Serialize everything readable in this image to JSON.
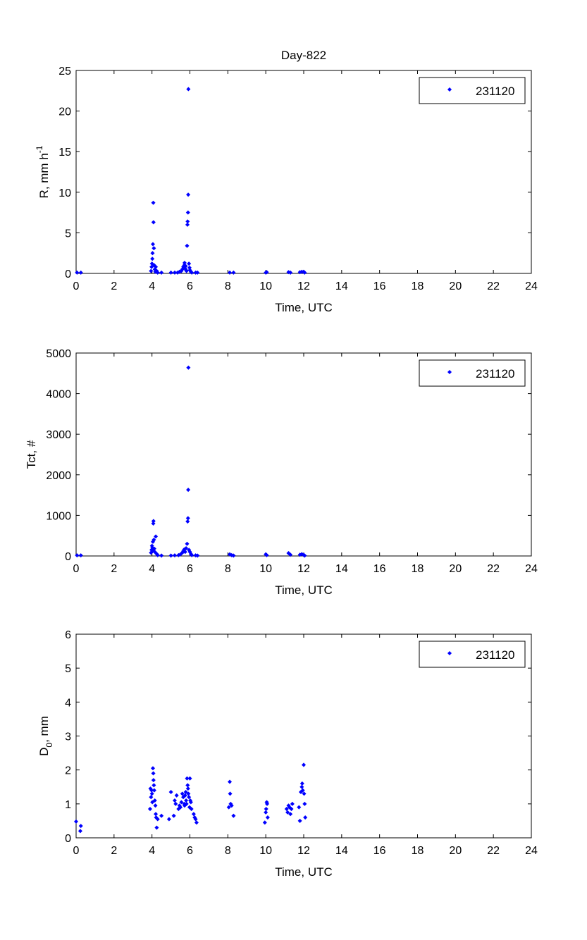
{
  "figure_title": "Day-822",
  "chart_data": [
    {
      "type": "scatter",
      "title": "Day-822",
      "xlabel": "Time, UTC",
      "ylabel": "R, mm h",
      "ylabel_sup": "-1",
      "xlim": [
        0,
        24
      ],
      "ylim": [
        0,
        25
      ],
      "xticks": [
        "0",
        "2",
        "4",
        "6",
        "8",
        "10",
        "12",
        "14",
        "16",
        "18",
        "20",
        "22",
        "24"
      ],
      "yticks": [
        "0",
        "5",
        "10",
        "15",
        "20",
        "25"
      ],
      "grid": false,
      "legend_position": "top-right",
      "series": [
        {
          "name": "231120",
          "color": "#0000ff",
          "marker": "diamond",
          "points": [
            [
              0.05,
              0.1
            ],
            [
              0.25,
              0.1
            ],
            [
              3.95,
              0.3
            ],
            [
              3.98,
              0.8
            ],
            [
              4.0,
              1.2
            ],
            [
              4.02,
              1.8
            ],
            [
              4.03,
              2.5
            ],
            [
              4.05,
              3.6
            ],
            [
              4.07,
              8.7
            ],
            [
              4.08,
              6.3
            ],
            [
              4.1,
              3.1
            ],
            [
              4.12,
              1.0
            ],
            [
              4.15,
              0.5
            ],
            [
              4.18,
              0.2
            ],
            [
              4.2,
              0.8
            ],
            [
              4.25,
              0.3
            ],
            [
              4.3,
              0.1
            ],
            [
              4.5,
              0.1
            ],
            [
              5.0,
              0.1
            ],
            [
              5.2,
              0.1
            ],
            [
              5.35,
              0.1
            ],
            [
              5.45,
              0.2
            ],
            [
              5.55,
              0.3
            ],
            [
              5.6,
              0.5
            ],
            [
              5.65,
              0.8
            ],
            [
              5.7,
              1.0
            ],
            [
              5.72,
              1.3
            ],
            [
              5.75,
              0.6
            ],
            [
              5.78,
              0.9
            ],
            [
              5.8,
              0.4
            ],
            [
              5.82,
              0.3
            ],
            [
              5.85,
              3.4
            ],
            [
              5.87,
              6.0
            ],
            [
              5.88,
              6.4
            ],
            [
              5.9,
              7.5
            ],
            [
              5.91,
              9.7
            ],
            [
              5.92,
              22.7
            ],
            [
              5.95,
              1.2
            ],
            [
              5.98,
              0.7
            ],
            [
              6.0,
              0.4
            ],
            [
              6.05,
              0.2
            ],
            [
              6.1,
              0.1
            ],
            [
              6.3,
              0.1
            ],
            [
              6.4,
              0.1
            ],
            [
              8.1,
              0.1
            ],
            [
              8.3,
              0.1
            ],
            [
              10.0,
              0.1
            ],
            [
              10.05,
              0.15
            ],
            [
              11.2,
              0.15
            ],
            [
              11.3,
              0.1
            ],
            [
              11.8,
              0.15
            ],
            [
              11.9,
              0.2
            ],
            [
              12.0,
              0.2
            ],
            [
              12.05,
              0.1
            ]
          ]
        }
      ]
    },
    {
      "type": "scatter",
      "title": "",
      "xlabel": "Time, UTC",
      "ylabel": "Tct, #",
      "xlim": [
        0,
        24
      ],
      "ylim": [
        0,
        5000
      ],
      "xticks": [
        "0",
        "2",
        "4",
        "6",
        "8",
        "10",
        "12",
        "14",
        "16",
        "18",
        "20",
        "22",
        "24"
      ],
      "yticks": [
        "0",
        "1000",
        "2000",
        "3000",
        "4000",
        "5000"
      ],
      "grid": false,
      "legend_position": "top-right",
      "series": [
        {
          "name": "231120",
          "color": "#0000ff",
          "marker": "diamond",
          "points": [
            [
              0.05,
              15
            ],
            [
              0.25,
              15
            ],
            [
              3.95,
              80
            ],
            [
              3.98,
              150
            ],
            [
              4.0,
              250
            ],
            [
              4.02,
              200
            ],
            [
              4.03,
              120
            ],
            [
              4.05,
              350
            ],
            [
              4.07,
              800
            ],
            [
              4.08,
              860
            ],
            [
              4.1,
              400
            ],
            [
              4.12,
              180
            ],
            [
              4.15,
              100
            ],
            [
              4.2,
              480
            ],
            [
              4.25,
              50
            ],
            [
              4.3,
              20
            ],
            [
              4.5,
              10
            ],
            [
              5.0,
              10
            ],
            [
              5.2,
              15
            ],
            [
              5.4,
              20
            ],
            [
              5.5,
              40
            ],
            [
              5.6,
              80
            ],
            [
              5.65,
              120
            ],
            [
              5.7,
              160
            ],
            [
              5.75,
              100
            ],
            [
              5.8,
              190
            ],
            [
              5.85,
              300
            ],
            [
              5.88,
              850
            ],
            [
              5.9,
              930
            ],
            [
              5.91,
              1630
            ],
            [
              5.92,
              4640
            ],
            [
              5.95,
              150
            ],
            [
              6.0,
              100
            ],
            [
              6.05,
              50
            ],
            [
              6.1,
              20
            ],
            [
              6.3,
              15
            ],
            [
              6.4,
              10
            ],
            [
              8.1,
              40
            ],
            [
              8.2,
              20
            ],
            [
              8.3,
              10
            ],
            [
              10.0,
              40
            ],
            [
              10.05,
              20
            ],
            [
              11.2,
              70
            ],
            [
              11.3,
              30
            ],
            [
              11.8,
              30
            ],
            [
              11.9,
              45
            ],
            [
              12.0,
              25
            ],
            [
              12.05,
              10
            ]
          ]
        }
      ]
    },
    {
      "type": "scatter",
      "title": "",
      "xlabel": "Time, UTC",
      "ylabel": "D",
      "ylabel_sub": "0",
      "ylabel_suffix": ", mm",
      "xlim": [
        0,
        24
      ],
      "ylim": [
        0,
        6
      ],
      "xticks": [
        "0",
        "2",
        "4",
        "6",
        "8",
        "10",
        "12",
        "14",
        "16",
        "18",
        "20",
        "22",
        "24"
      ],
      "yticks": [
        "0",
        "1",
        "2",
        "3",
        "4",
        "5",
        "6"
      ],
      "grid": false,
      "legend_position": "top-right",
      "series": [
        {
          "name": "231120",
          "color": "#0000ff",
          "marker": "diamond",
          "points": [
            [
              0.0,
              0.48
            ],
            [
              0.22,
              0.2
            ],
            [
              0.25,
              0.35
            ],
            [
              3.9,
              0.85
            ],
            [
              3.92,
              1.45
            ],
            [
              3.95,
              1.2
            ],
            [
              3.98,
              1.4
            ],
            [
              4.0,
              1.3
            ],
            [
              4.02,
              1.05
            ],
            [
              4.05,
              2.05
            ],
            [
              4.07,
              1.9
            ],
            [
              4.08,
              1.7
            ],
            [
              4.1,
              1.55
            ],
            [
              4.12,
              1.4
            ],
            [
              4.15,
              1.1
            ],
            [
              4.18,
              0.95
            ],
            [
              4.2,
              0.7
            ],
            [
              4.22,
              0.6
            ],
            [
              4.25,
              0.3
            ],
            [
              4.3,
              0.55
            ],
            [
              4.5,
              0.65
            ],
            [
              4.9,
              0.55
            ],
            [
              5.0,
              1.35
            ],
            [
              5.15,
              0.65
            ],
            [
              5.2,
              1.1
            ],
            [
              5.25,
              1.0
            ],
            [
              5.3,
              1.25
            ],
            [
              5.4,
              0.85
            ],
            [
              5.45,
              0.95
            ],
            [
              5.5,
              0.9
            ],
            [
              5.55,
              1.05
            ],
            [
              5.6,
              1.3
            ],
            [
              5.65,
              1.2
            ],
            [
              5.7,
              1.0
            ],
            [
              5.72,
              0.95
            ],
            [
              5.75,
              1.25
            ],
            [
              5.78,
              1.35
            ],
            [
              5.8,
              1.1
            ],
            [
              5.82,
              1.0
            ],
            [
              5.85,
              1.75
            ],
            [
              5.88,
              1.55
            ],
            [
              5.9,
              1.45
            ],
            [
              5.92,
              1.3
            ],
            [
              5.95,
              1.2
            ],
            [
              5.98,
              0.9
            ],
            [
              6.0,
              1.75
            ],
            [
              6.02,
              1.1
            ],
            [
              6.05,
              1.05
            ],
            [
              6.08,
              0.85
            ],
            [
              6.2,
              0.7
            ],
            [
              6.25,
              0.6
            ],
            [
              6.3,
              0.55
            ],
            [
              6.35,
              0.45
            ],
            [
              8.05,
              0.9
            ],
            [
              8.1,
              1.65
            ],
            [
              8.12,
              1.3
            ],
            [
              8.15,
              1.0
            ],
            [
              8.2,
              0.95
            ],
            [
              8.3,
              0.65
            ],
            [
              9.95,
              0.45
            ],
            [
              10.0,
              0.75
            ],
            [
              10.02,
              0.85
            ],
            [
              10.05,
              1.05
            ],
            [
              10.07,
              1.0
            ],
            [
              10.1,
              0.6
            ],
            [
              11.1,
              0.85
            ],
            [
              11.15,
              0.75
            ],
            [
              11.2,
              0.95
            ],
            [
              11.25,
              0.9
            ],
            [
              11.3,
              0.7
            ],
            [
              11.35,
              0.85
            ],
            [
              11.4,
              1.0
            ],
            [
              11.75,
              0.9
            ],
            [
              11.8,
              0.5
            ],
            [
              11.85,
              1.35
            ],
            [
              11.9,
              1.5
            ],
            [
              11.92,
              1.6
            ],
            [
              11.95,
              1.4
            ],
            [
              12.0,
              2.15
            ],
            [
              12.02,
              1.3
            ],
            [
              12.05,
              1.0
            ],
            [
              12.08,
              0.6
            ]
          ]
        }
      ]
    }
  ]
}
